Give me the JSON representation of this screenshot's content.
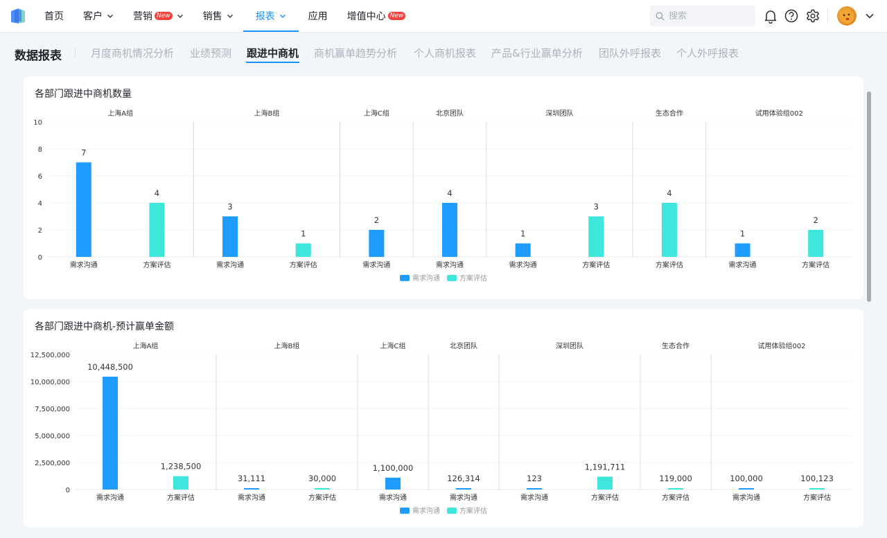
{
  "nav": {
    "items": [
      {
        "label": "首页"
      },
      {
        "label": "客户"
      },
      {
        "label": "营销",
        "badge": "New"
      },
      {
        "label": "销售"
      },
      {
        "label": "报表"
      },
      {
        "label": "应用"
      },
      {
        "label": "增值中心",
        "badge": "New"
      }
    ],
    "search_placeholder": "搜索",
    "icons": [
      "bell-icon",
      "help-icon",
      "gear-icon"
    ]
  },
  "page": {
    "title": "数据报表",
    "tabs": [
      "月度商机情况分析",
      "业绩预测",
      "跟进中商机",
      "商机赢单趋势分析",
      "个人商机报表",
      "产品&行业赢单分析",
      "团队外呼报表",
      "个人外呼报表"
    ],
    "active_tab": "跟进中商机"
  },
  "colors": {
    "accent": "#1890ff",
    "series1": "#1e9cff",
    "series2": "#3fe6dc"
  },
  "chart_data": [
    {
      "type": "bar",
      "title": "各部门跟进中商机数量",
      "groups": [
        {
          "name": "上海A组",
          "categories": [
            "需求沟通",
            "方案评估"
          ],
          "values": [
            7,
            4
          ]
        },
        {
          "name": "上海B组",
          "categories": [
            "需求沟通",
            "方案评估"
          ],
          "values": [
            3,
            1
          ]
        },
        {
          "name": "上海C组",
          "categories": [
            "需求沟通"
          ],
          "values": [
            2
          ]
        },
        {
          "name": "北京团队",
          "categories": [
            "需求沟通"
          ],
          "values": [
            4
          ]
        },
        {
          "name": "深圳团队",
          "categories": [
            "需求沟通",
            "方案评估"
          ],
          "values": [
            1,
            3
          ]
        },
        {
          "name": "生态合作",
          "categories": [
            "方案评估"
          ],
          "values": [
            4
          ]
        },
        {
          "name": "试用体验组002",
          "categories": [
            "需求沟通",
            "方案评估"
          ],
          "values": [
            1,
            2
          ]
        }
      ],
      "y_ticks": [
        "0",
        "2",
        "4",
        "6",
        "8",
        "10"
      ],
      "ylim": [
        0,
        10
      ],
      "legend": [
        "需求沟通",
        "方案评估"
      ],
      "legend_position": "bottom-center"
    },
    {
      "type": "bar",
      "title": "各部门跟进中商机-预计赢单金额",
      "groups": [
        {
          "name": "上海A组",
          "categories": [
            "需求沟通",
            "方案评估"
          ],
          "values": [
            10448500,
            1238500
          ],
          "labels": [
            "10,448,500",
            "1,238,500"
          ]
        },
        {
          "name": "上海B组",
          "categories": [
            "需求沟通",
            "方案评估"
          ],
          "values": [
            31111,
            30000
          ],
          "labels": [
            "31,111",
            "30,000"
          ]
        },
        {
          "name": "上海C组",
          "categories": [
            "需求沟通"
          ],
          "values": [
            1100000
          ],
          "labels": [
            "1,100,000"
          ]
        },
        {
          "name": "北京团队",
          "categories": [
            "需求沟通"
          ],
          "values": [
            126314
          ],
          "labels": [
            "126,314"
          ]
        },
        {
          "name": "深圳团队",
          "categories": [
            "需求沟通",
            "方案评估"
          ],
          "values": [
            123,
            1191711
          ],
          "labels": [
            "123",
            "1,191,711"
          ]
        },
        {
          "name": "生态合作",
          "categories": [
            "方案评估"
          ],
          "values": [
            119000
          ],
          "labels": [
            "119,000"
          ]
        },
        {
          "name": "试用体验组002",
          "categories": [
            "需求沟通",
            "方案评估"
          ],
          "values": [
            100000,
            100123
          ],
          "labels": [
            "100,000",
            "100,123"
          ]
        }
      ],
      "y_ticks": [
        "0",
        "2,500,000",
        "5,000,000",
        "7,500,000",
        "10,000,000",
        "12,500,000"
      ],
      "ylim": [
        0,
        12500000
      ],
      "legend": [
        "需求沟通",
        "方案评估"
      ],
      "legend_position": "bottom-center"
    }
  ]
}
